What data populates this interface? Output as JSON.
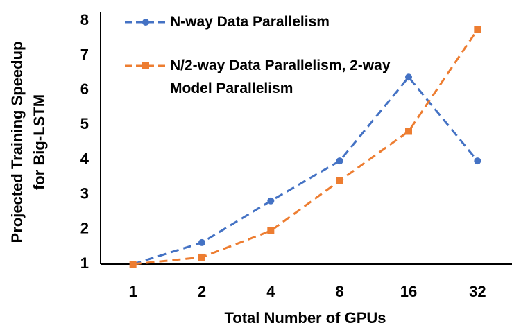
{
  "chart_data": {
    "type": "line",
    "categories": [
      "1",
      "2",
      "4",
      "8",
      "16",
      "32"
    ],
    "series": [
      {
        "name": "N-way Data Parallelism",
        "color": "#4472c4",
        "marker": "circle",
        "values": [
          1,
          1.62,
          2.82,
          3.97,
          6.38,
          3.97
        ]
      },
      {
        "name": "N/2-way Data Parallelism, 2-way Model Parallelism",
        "color": "#ed7d31",
        "marker": "square",
        "values": [
          1,
          1.2,
          1.96,
          3.4,
          4.82,
          7.75
        ]
      }
    ],
    "ylim": [
      1,
      8
    ],
    "yticks": [
      1,
      2,
      3,
      4,
      5,
      6,
      7,
      8
    ],
    "x_label": "Total Number of GPUs",
    "y_label": [
      "Projected Training Speedup",
      "for Big-LSTM"
    ],
    "grid": false
  }
}
